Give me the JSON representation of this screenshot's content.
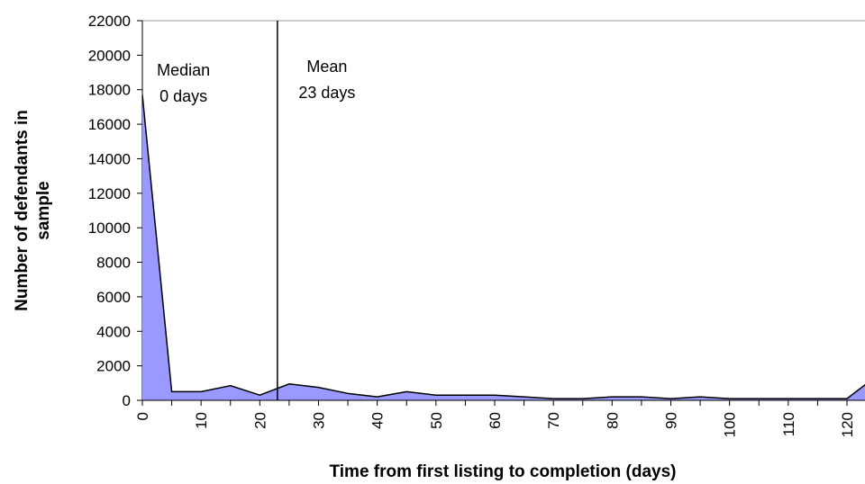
{
  "chart_data": {
    "type": "area",
    "title": "",
    "xlabel": "Time from first listing to completion (days)",
    "ylabel_lines": [
      "Number of defendants in",
      "sample"
    ],
    "xlim": [
      0,
      123
    ],
    "ylim": [
      0,
      22000
    ],
    "x_ticks": [
      0,
      10,
      20,
      30,
      40,
      50,
      60,
      70,
      80,
      90,
      100,
      110,
      120
    ],
    "y_ticks": [
      0,
      2000,
      4000,
      6000,
      8000,
      10000,
      12000,
      14000,
      16000,
      18000,
      20000,
      22000
    ],
    "grid": false,
    "legend": "none",
    "fill_color": "#9999ff",
    "line_color": "#000000",
    "series": [
      {
        "x": [
          0,
          5,
          10,
          15,
          20,
          25,
          30,
          35,
          40,
          45,
          50,
          55,
          60,
          65,
          70,
          75,
          80,
          85,
          90,
          95,
          100,
          105,
          110,
          115,
          120,
          125
        ],
        "y": [
          17700,
          500,
          500,
          850,
          300,
          950,
          750,
          400,
          200,
          500,
          300,
          300,
          300,
          200,
          100,
          100,
          200,
          200,
          100,
          200,
          100,
          100,
          100,
          100,
          100,
          1400
        ]
      }
    ],
    "reference_lines": [
      {
        "x": 23,
        "label_lines": [
          "Mean",
          "23 days"
        ]
      }
    ],
    "annotations": [
      {
        "x": 7,
        "label_lines": [
          "Median",
          "0 days"
        ]
      }
    ]
  }
}
